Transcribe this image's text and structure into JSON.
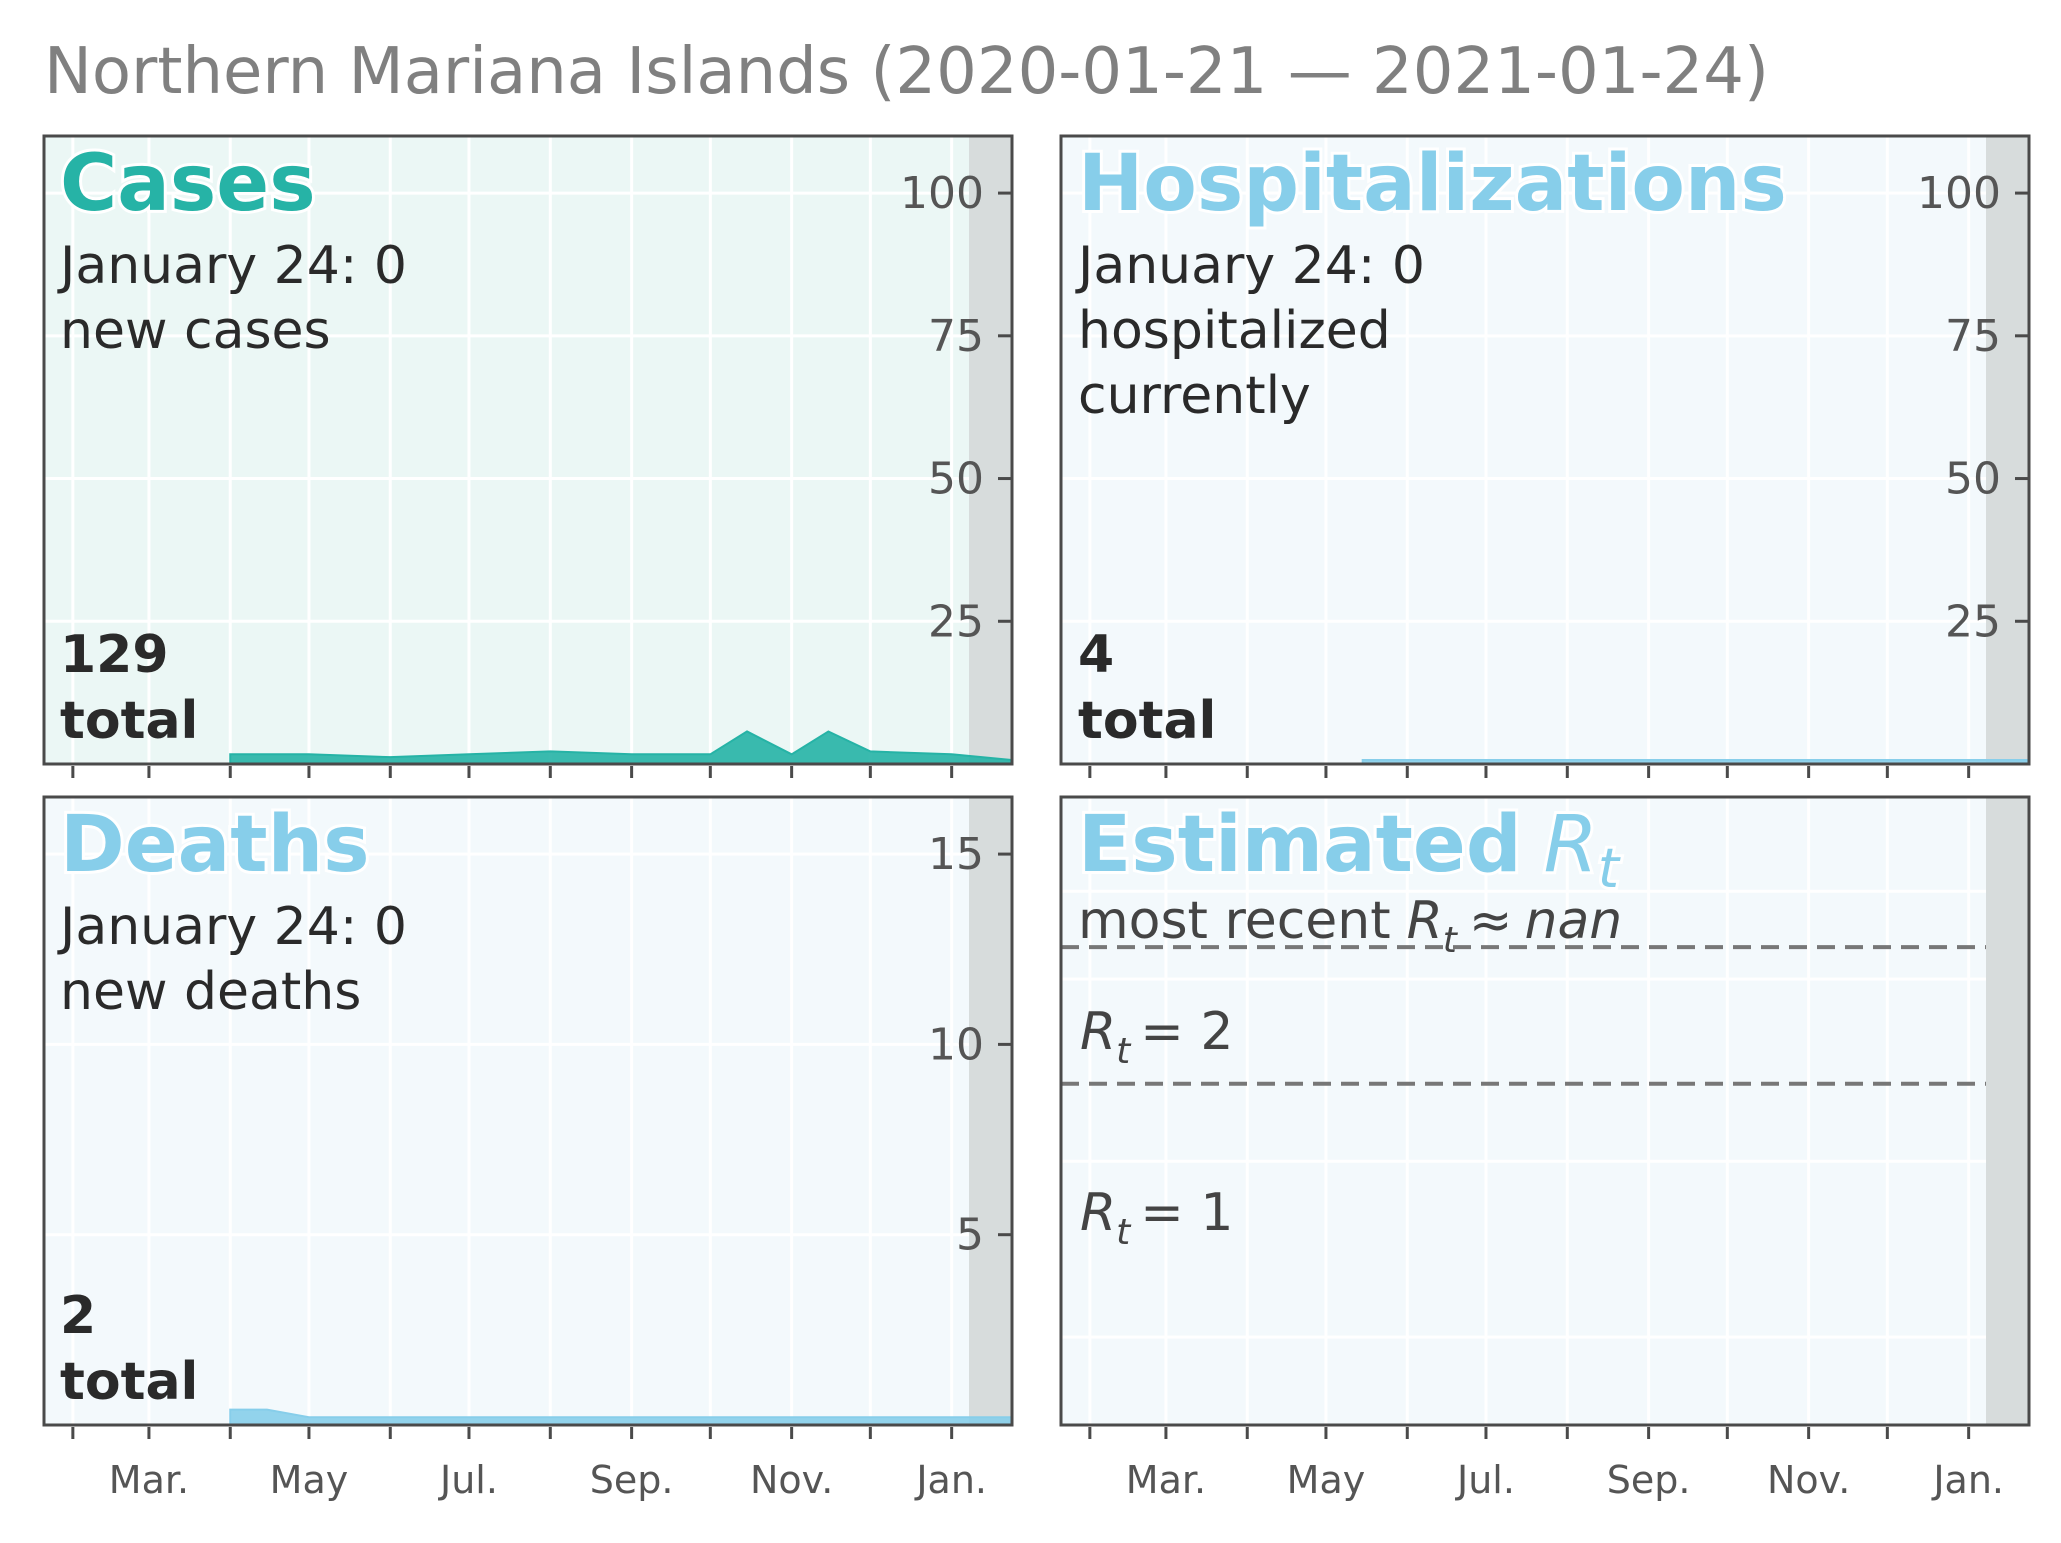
{
  "figure": {
    "title": "Northern Mariana Islands (2020-01-21 — 2021-01-24)"
  },
  "colors": {
    "cases_accent": "#26b3a6",
    "blue_accent": "#87ceea",
    "cases_bg": "#ebf7f5",
    "blue_bg": "#f3f9fc",
    "shade": "#d7dcdc",
    "frame": "#4a4a4a",
    "tick_text": "#555555",
    "dark_text": "#2a2a2a",
    "dash": "#777777"
  },
  "panels": {
    "cases": {
      "heading": "Cases",
      "line1": "January 24: 0",
      "line2": "new cases",
      "total_value": "129",
      "total_label": "total"
    },
    "hosp": {
      "heading": "Hospitalizations",
      "line1": "January 24: 0",
      "line2": "hospitalized",
      "line3": "currently",
      "total_value": "4",
      "total_label": "total"
    },
    "deaths": {
      "heading": "Deaths",
      "line1": "January 24: 0",
      "line2": "new deaths",
      "total_value": "2",
      "total_label": "total"
    },
    "rt": {
      "heading": "Estimated",
      "heading_symbol": "R",
      "heading_sub": "t",
      "recent_prefix": "most recent",
      "recent_symbol": "R",
      "recent_sub": "t",
      "recent_approx": "≈",
      "recent_value": "nan",
      "ref2_symbol": "R",
      "ref2_sub": "t",
      "ref2_eq": "= 2",
      "ref1_symbol": "R",
      "ref1_sub": "t",
      "ref1_eq": "= 1"
    }
  },
  "chart_data": [
    {
      "type": "area",
      "name": "cases",
      "x_tick_labels": [
        "Mar.",
        "May",
        "Jul.",
        "Sep.",
        "Nov.",
        "Jan."
      ],
      "y_ticks": [
        25,
        50,
        75,
        100
      ],
      "ylim": [
        0,
        110
      ],
      "xlim": [
        "2020-01-21",
        "2021-01-24"
      ],
      "series": [
        {
          "x": [
            "2020-04-01",
            "2020-05-01",
            "2020-06-01",
            "2020-07-01",
            "2020-08-01",
            "2020-09-01",
            "2020-10-01",
            "2020-10-15",
            "2020-11-01",
            "2020-11-15",
            "2020-12-01",
            "2021-01-01",
            "2021-01-24"
          ],
          "values": [
            1,
            1,
            0.5,
            1,
            1.5,
            1,
            1,
            5,
            1,
            5,
            1.5,
            1,
            0
          ]
        }
      ]
    },
    {
      "type": "area",
      "name": "hospitalizations",
      "y_ticks": [
        25,
        50,
        75,
        100
      ],
      "ylim": [
        0,
        110
      ],
      "series": [
        {
          "x": [
            "2020-05-15",
            "2021-01-24"
          ],
          "values": [
            0,
            0
          ]
        }
      ]
    },
    {
      "type": "area",
      "name": "deaths",
      "x_tick_labels": [
        "Mar.",
        "May",
        "Jul.",
        "Sep.",
        "Nov.",
        "Jan."
      ],
      "y_ticks": [
        5,
        10,
        15
      ],
      "ylim": [
        0,
        16.5
      ],
      "series": [
        {
          "x": [
            "2020-04-01",
            "2020-04-15",
            "2020-05-01",
            "2021-01-24"
          ],
          "values": [
            0.3,
            0.3,
            0.1,
            0.1
          ]
        }
      ]
    },
    {
      "type": "line",
      "name": "rt",
      "x_tick_labels": [
        "Mar.",
        "May",
        "Jul.",
        "Sep.",
        "Nov.",
        "Jan."
      ],
      "reference_lines": [
        1,
        2
      ],
      "series": []
    }
  ]
}
